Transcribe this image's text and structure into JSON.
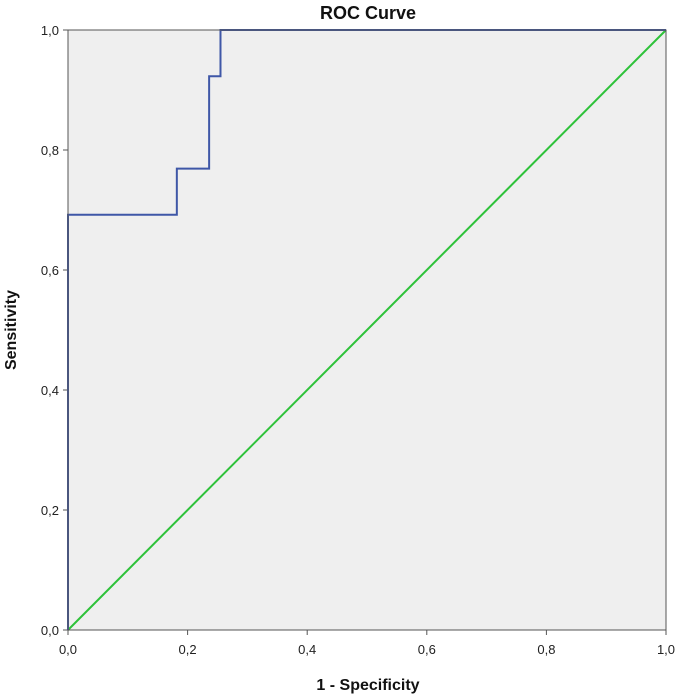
{
  "chart_data": {
    "type": "line",
    "title": "ROC Curve",
    "xlabel": "1 - Specificity",
    "ylabel": "Sensitivity",
    "xlim": [
      0,
      1
    ],
    "ylim": [
      0,
      1
    ],
    "x_ticks": [
      "0,0",
      "0,2",
      "0,4",
      "0,6",
      "0,8",
      "1,0"
    ],
    "y_ticks": [
      "0,0",
      "0,2",
      "0,4",
      "0,6",
      "0,8",
      "1,0"
    ],
    "x_tick_values": [
      0,
      0.2,
      0.4,
      0.6,
      0.8,
      1.0
    ],
    "y_tick_values": [
      0,
      0.2,
      0.4,
      0.6,
      0.8,
      1.0
    ],
    "grid": false,
    "background_color": "#efefef",
    "series": [
      {
        "color": "#3f57a7",
        "points": [
          [
            0.0,
            0.0
          ],
          [
            0.0,
            0.692
          ],
          [
            0.182,
            0.692
          ],
          [
            0.182,
            0.769
          ],
          [
            0.236,
            0.769
          ],
          [
            0.236,
            0.923
          ],
          [
            0.255,
            0.923
          ],
          [
            0.255,
            1.0
          ],
          [
            1.0,
            1.0
          ]
        ]
      },
      {
        "color": "#2ec23a",
        "points": [
          [
            0.0,
            0.0
          ],
          [
            1.0,
            1.0
          ]
        ]
      }
    ]
  }
}
